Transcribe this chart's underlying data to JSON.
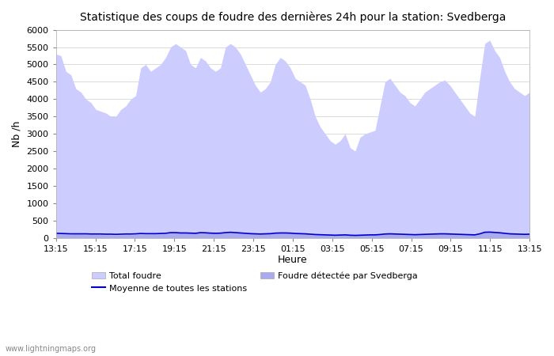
{
  "title": "Statistique des coups de foudre des dernières 24h pour la station: Svedberga",
  "xlabel": "Heure",
  "ylabel": "Nb /h",
  "ylim": [
    0,
    6000
  ],
  "yticks": [
    0,
    500,
    1000,
    1500,
    2000,
    2500,
    3000,
    3500,
    4000,
    4500,
    5000,
    5500,
    6000
  ],
  "xtick_labels": [
    "13:15",
    "15:15",
    "17:15",
    "19:15",
    "21:15",
    "23:15",
    "01:15",
    "03:15",
    "05:15",
    "07:15",
    "09:15",
    "11:15",
    "13:15"
  ],
  "watermark": "www.lightningmaps.org",
  "fill_color_total": "#ccccff",
  "fill_color_detected": "#aaaaee",
  "line_color": "#0000cc",
  "background_color": "#ffffff",
  "grid_color": "#cccccc",
  "total_foudre": [
    5300,
    5250,
    4800,
    4700,
    4300,
    4200,
    4000,
    3900,
    3700,
    3650,
    3600,
    3500,
    3500,
    3700,
    3800,
    4000,
    4100,
    4900,
    5000,
    4800,
    4900,
    5000,
    5200,
    5500,
    5600,
    5500,
    5400,
    5000,
    4900,
    5200,
    5100,
    4900,
    4800,
    4900,
    5500,
    5600,
    5500,
    5300,
    5000,
    4700,
    4400,
    4200,
    4300,
    4500,
    5000,
    5200,
    5100,
    4900,
    4600,
    4500,
    4400,
    4000,
    3500,
    3200,
    3000,
    2800,
    2700,
    2800,
    3000,
    2600,
    2500,
    2900,
    3000,
    3050,
    3100,
    3800,
    4500,
    4600,
    4400,
    4200,
    4100,
    3900,
    3800,
    4000,
    4200,
    4300,
    4400,
    4500,
    4550,
    4400,
    4200,
    4000,
    3800,
    3600,
    3500,
    4600,
    5600,
    5700,
    5400,
    5200,
    4800,
    4500,
    4300,
    4200,
    4100,
    4200
  ],
  "detected_foudre": [
    120,
    110,
    110,
    100,
    105,
    100,
    100,
    95,
    90,
    90,
    85,
    85,
    80,
    85,
    90,
    90,
    95,
    110,
    105,
    105,
    110,
    110,
    115,
    155,
    155,
    145,
    145,
    140,
    135,
    155,
    150,
    140,
    135,
    140,
    155,
    165,
    155,
    145,
    135,
    125,
    120,
    115,
    120,
    125,
    140,
    145,
    145,
    140,
    130,
    125,
    120,
    110,
    100,
    95,
    90,
    85,
    80,
    85,
    90,
    80,
    75,
    80,
    85,
    90,
    90,
    100,
    115,
    120,
    115,
    110,
    105,
    100,
    95,
    100,
    105,
    110,
    115,
    120,
    120,
    115,
    110,
    105,
    100,
    95,
    90,
    120,
    165,
    170,
    160,
    150,
    135,
    120,
    115,
    110,
    105,
    110
  ],
  "mean_line": [
    130,
    125,
    120,
    115,
    115,
    115,
    115,
    110,
    110,
    110,
    105,
    105,
    100,
    105,
    110,
    110,
    115,
    125,
    120,
    120,
    120,
    125,
    130,
    150,
    150,
    140,
    140,
    135,
    130,
    150,
    145,
    135,
    130,
    135,
    150,
    160,
    150,
    140,
    130,
    120,
    115,
    110,
    115,
    120,
    135,
    140,
    140,
    135,
    125,
    120,
    115,
    105,
    95,
    90,
    85,
    80,
    75,
    80,
    85,
    75,
    70,
    75,
    80,
    85,
    85,
    95,
    110,
    115,
    110,
    105,
    100,
    95,
    90,
    95,
    100,
    105,
    110,
    115,
    115,
    110,
    105,
    100,
    95,
    90,
    85,
    115,
    160,
    165,
    155,
    145,
    130,
    115,
    110,
    105,
    100,
    105
  ]
}
